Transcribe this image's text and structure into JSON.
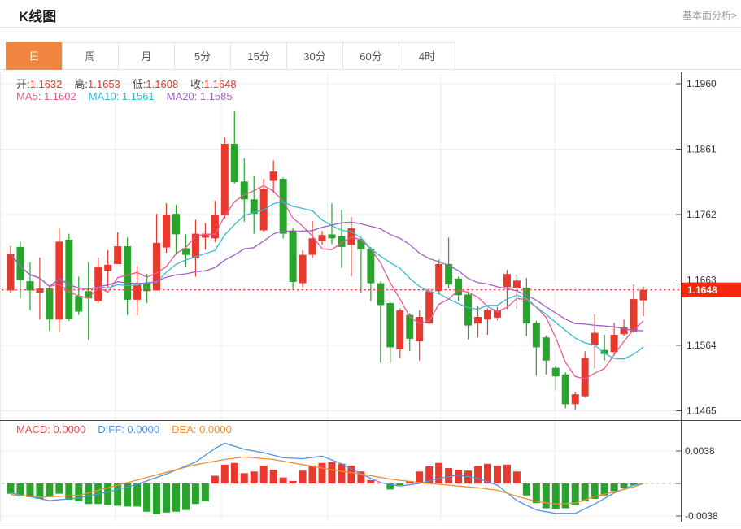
{
  "header": {
    "title": "K线图",
    "link": "基本面分析>"
  },
  "tabs": {
    "items": [
      "日",
      "周",
      "月",
      "5分",
      "15分",
      "30分",
      "60分",
      "4时"
    ],
    "active_index": 0
  },
  "legend": {
    "ohlc": [
      {
        "label": "开:",
        "value": "1.1632"
      },
      {
        "label": "高:",
        "value": "1.1653"
      },
      {
        "label": "低:",
        "value": "1.1608"
      },
      {
        "label": "收:",
        "value": "1.1648"
      }
    ],
    "ma": [
      {
        "label": "MA5:",
        "value": "1.1602",
        "color": "#e85a8e"
      },
      {
        "label": "MA10:",
        "value": "1.1561",
        "color": "#33bcd4"
      },
      {
        "label": "MA20:",
        "value": "1.1585",
        "color": "#a25fc4"
      }
    ],
    "macd": [
      {
        "label": "MACD:",
        "value": "0.0000",
        "color": "#d9534f"
      },
      {
        "label": "DIFF:",
        "value": "0.0000",
        "color": "#4d94ea"
      },
      {
        "label": "DEA:",
        "value": "0.0000",
        "color": "#ef8e2e"
      }
    ]
  },
  "price_axis": {
    "ticks": [
      "1.1960",
      "1.1861",
      "1.1762",
      "1.1663",
      "1.1564",
      "1.1465"
    ],
    "current_badge": "1.1648"
  },
  "macd_axis": {
    "ticks": [
      "0.0038",
      "-0.0038"
    ]
  },
  "colors": {
    "up": "#e8392e",
    "down": "#28a32c",
    "badge_bg": "#f2270e",
    "badge_text": "#ffffff",
    "grid": "#ececec",
    "axis": "#4a4a4a",
    "tick_text": "#333333",
    "price_dotted": "#f2493b",
    "macd_zero_dash": "#b9c6d2",
    "tab_active_bg": "#f0853f"
  },
  "chart_data": {
    "type": "candlestick+macd",
    "title": "K线图",
    "x_labels": [],
    "grid": true,
    "price_axis_ticks": [
      1.196,
      1.1861,
      1.1762,
      1.1663,
      1.1564,
      1.1465
    ],
    "price_range": [
      1.1465,
      1.196
    ],
    "current_price": 1.1648,
    "ohlc_display": {
      "open": 1.1632,
      "high": 1.1653,
      "low": 1.1608,
      "close": 1.1648
    },
    "ma_display": {
      "MA5": 1.1602,
      "MA10": 1.1561,
      "MA20": 1.1585
    },
    "ma_periods": [
      5,
      10,
      20
    ],
    "candles_format": [
      "open",
      "high",
      "low",
      "close"
    ],
    "candles": [
      [
        1.1647,
        1.1714,
        1.1644,
        1.1703
      ],
      [
        1.1713,
        1.1721,
        1.1635,
        1.1663
      ],
      [
        1.1661,
        1.169,
        1.1617,
        1.1647
      ],
      [
        1.1644,
        1.1697,
        1.1603,
        1.165
      ],
      [
        1.165,
        1.1654,
        1.1586,
        1.1603
      ],
      [
        1.1603,
        1.1742,
        1.1584,
        1.1721
      ],
      [
        1.1724,
        1.1733,
        1.1601,
        1.1604
      ],
      [
        1.1639,
        1.1668,
        1.161,
        1.1615
      ],
      [
        1.1646,
        1.169,
        1.1572,
        1.1635
      ],
      [
        1.1631,
        1.1697,
        1.1628,
        1.1683
      ],
      [
        1.1677,
        1.1708,
        1.1652,
        1.1686
      ],
      [
        1.1687,
        1.1735,
        1.1687,
        1.1714
      ],
      [
        1.1714,
        1.1727,
        1.161,
        1.1633
      ],
      [
        1.1633,
        1.1684,
        1.1609,
        1.1656
      ],
      [
        1.1658,
        1.1672,
        1.1628,
        1.1646
      ],
      [
        1.1647,
        1.1763,
        1.1647,
        1.1719
      ],
      [
        1.1712,
        1.1779,
        1.1704,
        1.1762
      ],
      [
        1.1763,
        1.1777,
        1.1701,
        1.1732
      ],
      [
        1.1711,
        1.1732,
        1.1683,
        1.1701
      ],
      [
        1.1696,
        1.1754,
        1.1668,
        1.1733
      ],
      [
        1.1727,
        1.1749,
        1.1709,
        1.1733
      ],
      [
        1.1726,
        1.1783,
        1.172,
        1.1762
      ],
      [
        1.1761,
        1.1879,
        1.1756,
        1.1869
      ],
      [
        1.1869,
        1.1919,
        1.1809,
        1.1811
      ],
      [
        1.1812,
        1.1847,
        1.1751,
        1.1785
      ],
      [
        1.1785,
        1.1821,
        1.1733,
        1.1763
      ],
      [
        1.1738,
        1.1816,
        1.1736,
        1.1801
      ],
      [
        1.1813,
        1.1844,
        1.1795,
        1.1827
      ],
      [
        1.1816,
        1.1818,
        1.1726,
        1.1733
      ],
      [
        1.1738,
        1.1742,
        1.1647,
        1.166
      ],
      [
        1.1658,
        1.1708,
        1.1652,
        1.1701
      ],
      [
        1.1701,
        1.1752,
        1.1696,
        1.1726
      ],
      [
        1.1722,
        1.1737,
        1.1716,
        1.1731
      ],
      [
        1.1732,
        1.1779,
        1.1717,
        1.1726
      ],
      [
        1.1729,
        1.1769,
        1.1681,
        1.1713
      ],
      [
        1.1716,
        1.1758,
        1.1668,
        1.1741
      ],
      [
        1.1724,
        1.1728,
        1.1644,
        1.1709
      ],
      [
        1.171,
        1.1713,
        1.1631,
        1.1658
      ],
      [
        1.1658,
        1.1661,
        1.1538,
        1.1625
      ],
      [
        1.1628,
        1.163,
        1.1537,
        1.1561
      ],
      [
        1.1558,
        1.162,
        1.1545,
        1.1617
      ],
      [
        1.161,
        1.1613,
        1.1555,
        1.1574
      ],
      [
        1.157,
        1.1617,
        1.1541,
        1.1607
      ],
      [
        1.1597,
        1.165,
        1.1597,
        1.1646
      ],
      [
        1.1646,
        1.1694,
        1.1641,
        1.1687
      ],
      [
        1.1687,
        1.1727,
        1.165,
        1.1656
      ],
      [
        1.1665,
        1.1668,
        1.1631,
        1.164
      ],
      [
        1.1641,
        1.1644,
        1.1573,
        1.1594
      ],
      [
        1.1597,
        1.1623,
        1.1576,
        1.1607
      ],
      [
        1.1603,
        1.162,
        1.158,
        1.1617
      ],
      [
        1.1606,
        1.1622,
        1.1602,
        1.1617
      ],
      [
        1.1652,
        1.1678,
        1.1619,
        1.1672
      ],
      [
        1.1651,
        1.1672,
        1.1619,
        1.1662
      ],
      [
        1.1651,
        1.1666,
        1.1578,
        1.1597
      ],
      [
        1.1598,
        1.1601,
        1.1518,
        1.1561
      ],
      [
        1.1576,
        1.1579,
        1.152,
        1.1541
      ],
      [
        1.153,
        1.1533,
        1.1496,
        1.1517
      ],
      [
        1.152,
        1.1523,
        1.1469,
        1.1475
      ],
      [
        1.1475,
        1.1493,
        1.1467,
        1.149
      ],
      [
        1.1487,
        1.1555,
        1.1485,
        1.1545
      ],
      [
        1.1564,
        1.1611,
        1.1529,
        1.1583
      ],
      [
        1.1557,
        1.158,
        1.1541,
        1.1551
      ],
      [
        1.1554,
        1.1598,
        1.1549,
        1.158
      ],
      [
        1.1581,
        1.1603,
        1.1578,
        1.1591
      ],
      [
        1.1585,
        1.1656,
        1.1583,
        1.1634
      ],
      [
        1.1632,
        1.1653,
        1.1608,
        1.1648
      ]
    ],
    "macd": {
      "display": {
        "MACD": 0.0,
        "DIFF": 0.0,
        "DEA": 0.0
      },
      "axis_ticks": [
        0.0038,
        -0.0038
      ],
      "histogram": [
        -0.0012,
        -0.0015,
        -0.0016,
        -0.0018,
        -0.0016,
        -0.0012,
        -0.0019,
        -0.0021,
        -0.0024,
        -0.0024,
        -0.0025,
        -0.0026,
        -0.0027,
        -0.0027,
        -0.0033,
        -0.0036,
        -0.0034,
        -0.0033,
        -0.0031,
        -0.0024,
        -0.0021,
        0.0009,
        0.0022,
        0.0024,
        0.0012,
        0.0014,
        0.0021,
        0.0016,
        0.0007,
        0.0003,
        0.0015,
        0.0021,
        0.0024,
        0.0025,
        0.0023,
        0.0021,
        0.0014,
        0.0004,
        0.0001,
        -0.0007,
        -0.0002,
        0.0003,
        0.0014,
        0.002,
        0.0024,
        0.0018,
        0.0016,
        0.0015,
        0.002,
        0.0023,
        0.0021,
        0.0022,
        0.0014,
        -0.0014,
        -0.0023,
        -0.0029,
        -0.003,
        -0.0029,
        -0.0025,
        -0.0021,
        -0.0018,
        -0.0014,
        -0.0009,
        -0.0005,
        -0.0002,
        0.0
      ],
      "diff_points": [
        [
          1,
          -0.0011
        ],
        [
          5,
          -0.002
        ],
        [
          8,
          -0.0017
        ],
        [
          11,
          -0.001
        ],
        [
          14,
          -0.0001
        ],
        [
          17,
          0.0011
        ],
        [
          20,
          0.0025
        ],
        [
          22,
          0.0041
        ],
        [
          23,
          0.0047
        ],
        [
          25,
          0.004
        ],
        [
          27,
          0.0036
        ],
        [
          29,
          0.003
        ],
        [
          31,
          0.0029
        ],
        [
          33,
          0.0032
        ],
        [
          35,
          0.0023
        ],
        [
          37,
          0.0011
        ],
        [
          39,
          0.0001
        ],
        [
          41,
          -0.0003
        ],
        [
          43,
          0.0
        ],
        [
          45,
          0.0006
        ],
        [
          47,
          0.001
        ],
        [
          49,
          0.0006
        ],
        [
          51,
          -0.0002
        ],
        [
          53,
          -0.002
        ],
        [
          55,
          -0.0031
        ],
        [
          57,
          -0.0035
        ],
        [
          59,
          -0.0035
        ],
        [
          61,
          -0.0024
        ],
        [
          63,
          -0.0011
        ],
        [
          65,
          -0.0002
        ],
        [
          66,
          0.0
        ]
      ],
      "dea_points": [
        [
          1,
          -0.0013
        ],
        [
          4,
          -0.0016
        ],
        [
          8,
          -0.0014
        ],
        [
          11,
          -0.0005
        ],
        [
          14,
          0.0004
        ],
        [
          17,
          0.0013
        ],
        [
          20,
          0.0022
        ],
        [
          23,
          0.0028
        ],
        [
          25,
          0.0031
        ],
        [
          28,
          0.0028
        ],
        [
          31,
          0.0022
        ],
        [
          34,
          0.0016
        ],
        [
          37,
          0.0011
        ],
        [
          40,
          0.0005
        ],
        [
          43,
          0.0001
        ],
        [
          46,
          -0.0002
        ],
        [
          49,
          -0.0005
        ],
        [
          51,
          -0.0008
        ],
        [
          53,
          -0.0015
        ],
        [
          55,
          -0.0021
        ],
        [
          57,
          -0.0024
        ],
        [
          59,
          -0.0023
        ],
        [
          61,
          -0.0015
        ],
        [
          63,
          -0.001
        ],
        [
          65,
          -0.0004
        ],
        [
          66,
          0.0
        ]
      ]
    }
  }
}
